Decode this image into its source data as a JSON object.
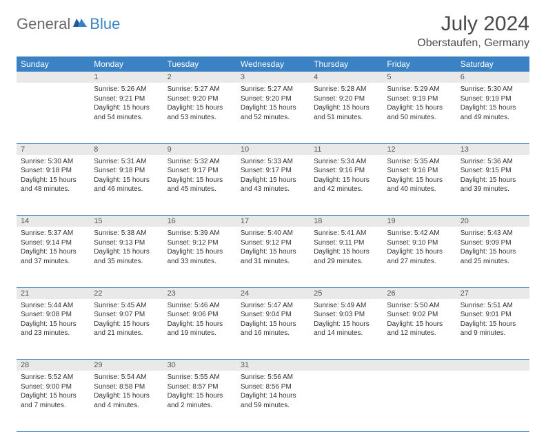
{
  "logo": {
    "general": "General",
    "blue": "Blue"
  },
  "title": "July 2024",
  "location": "Oberstaufen, Germany",
  "colors": {
    "header_bg": "#3a82c4",
    "header_text": "#ffffff",
    "daynum_bg": "#e9e9e9",
    "border": "#3a82c4",
    "logo_gray": "#6a6a6a",
    "logo_blue": "#3a82c4"
  },
  "weekdays": [
    "Sunday",
    "Monday",
    "Tuesday",
    "Wednesday",
    "Thursday",
    "Friday",
    "Saturday"
  ],
  "weeks": [
    {
      "nums": [
        "",
        "1",
        "2",
        "3",
        "4",
        "5",
        "6"
      ],
      "cells": [
        null,
        {
          "sr": "5:26 AM",
          "ss": "9:21 PM",
          "dl": "15 hours and 54 minutes."
        },
        {
          "sr": "5:27 AM",
          "ss": "9:20 PM",
          "dl": "15 hours and 53 minutes."
        },
        {
          "sr": "5:27 AM",
          "ss": "9:20 PM",
          "dl": "15 hours and 52 minutes."
        },
        {
          "sr": "5:28 AM",
          "ss": "9:20 PM",
          "dl": "15 hours and 51 minutes."
        },
        {
          "sr": "5:29 AM",
          "ss": "9:19 PM",
          "dl": "15 hours and 50 minutes."
        },
        {
          "sr": "5:30 AM",
          "ss": "9:19 PM",
          "dl": "15 hours and 49 minutes."
        }
      ]
    },
    {
      "nums": [
        "7",
        "8",
        "9",
        "10",
        "11",
        "12",
        "13"
      ],
      "cells": [
        {
          "sr": "5:30 AM",
          "ss": "9:18 PM",
          "dl": "15 hours and 48 minutes."
        },
        {
          "sr": "5:31 AM",
          "ss": "9:18 PM",
          "dl": "15 hours and 46 minutes."
        },
        {
          "sr": "5:32 AM",
          "ss": "9:17 PM",
          "dl": "15 hours and 45 minutes."
        },
        {
          "sr": "5:33 AM",
          "ss": "9:17 PM",
          "dl": "15 hours and 43 minutes."
        },
        {
          "sr": "5:34 AM",
          "ss": "9:16 PM",
          "dl": "15 hours and 42 minutes."
        },
        {
          "sr": "5:35 AM",
          "ss": "9:16 PM",
          "dl": "15 hours and 40 minutes."
        },
        {
          "sr": "5:36 AM",
          "ss": "9:15 PM",
          "dl": "15 hours and 39 minutes."
        }
      ]
    },
    {
      "nums": [
        "14",
        "15",
        "16",
        "17",
        "18",
        "19",
        "20"
      ],
      "cells": [
        {
          "sr": "5:37 AM",
          "ss": "9:14 PM",
          "dl": "15 hours and 37 minutes."
        },
        {
          "sr": "5:38 AM",
          "ss": "9:13 PM",
          "dl": "15 hours and 35 minutes."
        },
        {
          "sr": "5:39 AM",
          "ss": "9:12 PM",
          "dl": "15 hours and 33 minutes."
        },
        {
          "sr": "5:40 AM",
          "ss": "9:12 PM",
          "dl": "15 hours and 31 minutes."
        },
        {
          "sr": "5:41 AM",
          "ss": "9:11 PM",
          "dl": "15 hours and 29 minutes."
        },
        {
          "sr": "5:42 AM",
          "ss": "9:10 PM",
          "dl": "15 hours and 27 minutes."
        },
        {
          "sr": "5:43 AM",
          "ss": "9:09 PM",
          "dl": "15 hours and 25 minutes."
        }
      ]
    },
    {
      "nums": [
        "21",
        "22",
        "23",
        "24",
        "25",
        "26",
        "27"
      ],
      "cells": [
        {
          "sr": "5:44 AM",
          "ss": "9:08 PM",
          "dl": "15 hours and 23 minutes."
        },
        {
          "sr": "5:45 AM",
          "ss": "9:07 PM",
          "dl": "15 hours and 21 minutes."
        },
        {
          "sr": "5:46 AM",
          "ss": "9:06 PM",
          "dl": "15 hours and 19 minutes."
        },
        {
          "sr": "5:47 AM",
          "ss": "9:04 PM",
          "dl": "15 hours and 16 minutes."
        },
        {
          "sr": "5:49 AM",
          "ss": "9:03 PM",
          "dl": "15 hours and 14 minutes."
        },
        {
          "sr": "5:50 AM",
          "ss": "9:02 PM",
          "dl": "15 hours and 12 minutes."
        },
        {
          "sr": "5:51 AM",
          "ss": "9:01 PM",
          "dl": "15 hours and 9 minutes."
        }
      ]
    },
    {
      "nums": [
        "28",
        "29",
        "30",
        "31",
        "",
        "",
        ""
      ],
      "cells": [
        {
          "sr": "5:52 AM",
          "ss": "9:00 PM",
          "dl": "15 hours and 7 minutes."
        },
        {
          "sr": "5:54 AM",
          "ss": "8:58 PM",
          "dl": "15 hours and 4 minutes."
        },
        {
          "sr": "5:55 AM",
          "ss": "8:57 PM",
          "dl": "15 hours and 2 minutes."
        },
        {
          "sr": "5:56 AM",
          "ss": "8:56 PM",
          "dl": "14 hours and 59 minutes."
        },
        null,
        null,
        null
      ]
    }
  ],
  "labels": {
    "sunrise": "Sunrise: ",
    "sunset": "Sunset: ",
    "daylight": "Daylight: "
  }
}
